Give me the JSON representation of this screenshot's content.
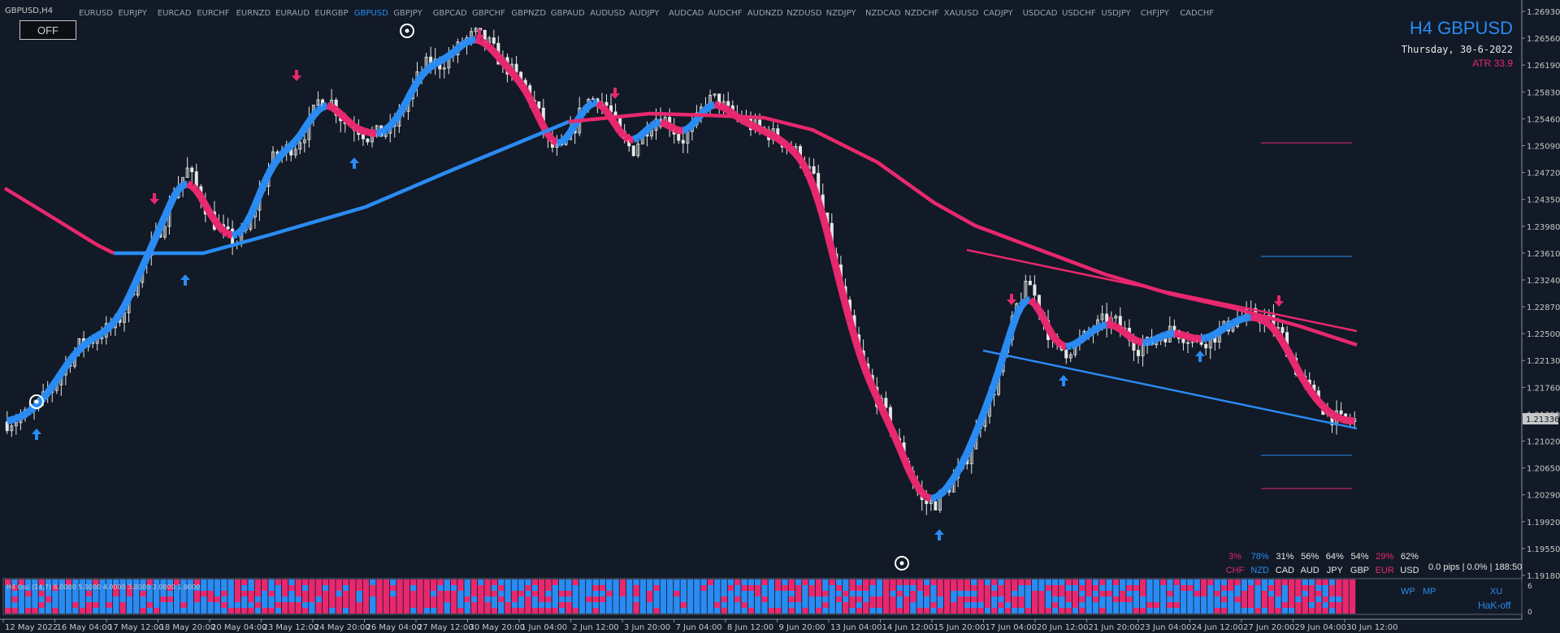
{
  "window": {
    "symbol_tf": "GBPUSD,H4"
  },
  "symbol_bar": [
    {
      "label": "EURUSD",
      "active": false
    },
    {
      "label": "EURJPY",
      "active": false
    },
    {
      "label": "EURCAD",
      "active": false
    },
    {
      "label": "EURCHF",
      "active": false
    },
    {
      "label": "EURNZD",
      "active": false
    },
    {
      "label": "EURAUD",
      "active": false
    },
    {
      "label": "EURGBP",
      "active": false
    },
    {
      "label": "GBPUSD",
      "active": true
    },
    {
      "label": "GBPJPY",
      "active": false
    },
    {
      "label": "GBPCAD",
      "active": false
    },
    {
      "label": "GBPCHF",
      "active": false
    },
    {
      "label": "GBPNZD",
      "active": false
    },
    {
      "label": "GBPAUD",
      "active": false
    },
    {
      "label": "AUDUSD",
      "active": false
    },
    {
      "label": "AUDJPY",
      "active": false
    },
    {
      "label": "AUDCAD",
      "active": false
    },
    {
      "label": "AUDCHF",
      "active": false
    },
    {
      "label": "AUDNZD",
      "active": false
    },
    {
      "label": "NZDUSD",
      "active": false
    },
    {
      "label": "NZDJPY",
      "active": false
    },
    {
      "label": "NZDCAD",
      "active": false
    },
    {
      "label": "NZDCHF",
      "active": false
    },
    {
      "label": "XAUUSD",
      "active": false
    },
    {
      "label": "CADJPY",
      "active": false
    },
    {
      "label": "USDCAD",
      "active": false
    },
    {
      "label": "USDCHF",
      "active": false
    },
    {
      "label": "USDJPY",
      "active": false
    },
    {
      "label": "CHFJPY",
      "active": false
    },
    {
      "label": "CADCHF",
      "active": false
    }
  ],
  "off_button": "OFF",
  "info": {
    "title": "H4 GBPUSD",
    "date": "Thursday, 30-6-2022",
    "atr": "ATR 33.9"
  },
  "price_axis": {
    "labels": [
      "1.26930",
      "1.26560",
      "1.26190",
      "1.25830",
      "1.25460",
      "1.25090",
      "1.24720",
      "1.24350",
      "1.23980",
      "1.23610",
      "1.23240",
      "1.22870",
      "1.22500",
      "1.22130",
      "1.21760",
      "1.21390",
      "1.21020",
      "1.20650",
      "1.20290",
      "1.19920",
      "1.19550",
      "1.19180"
    ],
    "current": "1.21336"
  },
  "time_axis": [
    "12 May 2022",
    "16 May 04:00",
    "17 May 12:00",
    "18 May 20:00",
    "20 May 04:00",
    "23 May 12:00",
    "24 May 20:00",
    "26 May 04:00",
    "27 May 12:00",
    "30 May 20:00",
    "1 Jun 04:00",
    "2 Jun 12:00",
    "3 Jun 20:00",
    "7 Jun 04:00",
    "8 Jun 12:00",
    "9 Jun 20:00",
    "13 Jun 04:00",
    "14 Jun 12:00",
    "15 Jun 20:00",
    "17 Jun 04:00",
    "20 Jun 12:00",
    "21 Jun 20:00",
    "23 Jun 04:00",
    "24 Jun 12:00",
    "27 Jun 20:00",
    "29 Jun 04:00",
    "30 Jun 12:00"
  ],
  "indicator_label": "H4 Osc (14,7) 6.0000 5.0000 4.0000 3.0000 2.0000 1.0000",
  "strength": {
    "pcts": [
      {
        "v": "3%",
        "c": "#e8286e"
      },
      {
        "v": "78%",
        "c": "#2a8bf2"
      },
      {
        "v": "31%",
        "c": "#e6e6e6"
      },
      {
        "v": "56%",
        "c": "#e6e6e6"
      },
      {
        "v": "64%",
        "c": "#e6e6e6"
      },
      {
        "v": "54%",
        "c": "#e6e6e6"
      },
      {
        "v": "29%",
        "c": "#e8286e"
      },
      {
        "v": "62%",
        "c": "#e6e6e6"
      }
    ],
    "ccys": [
      {
        "v": "CHF",
        "c": "#e8286e"
      },
      {
        "v": "NZD",
        "c": "#2a8bf2"
      },
      {
        "v": "CAD",
        "c": "#e6e6e6"
      },
      {
        "v": "AUD",
        "c": "#e6e6e6"
      },
      {
        "v": "JPY",
        "c": "#e6e6e6"
      },
      {
        "v": "GBP",
        "c": "#e6e6e6"
      },
      {
        "v": "EUR",
        "c": "#e8286e"
      },
      {
        "v": "USD",
        "c": "#e6e6e6"
      }
    ]
  },
  "pips_info": "0.0 pips | 0.0% | 188:50",
  "panel_buttons": {
    "wp": "WP",
    "mp": "MP",
    "xu": "XU",
    "hak": "HaK-off",
    "scale6": "6",
    "scale0": "0"
  },
  "colors": {
    "bg": "#111a26",
    "bull": "#2a8bf2",
    "bear": "#e8286e",
    "candle": "#e6e6e6",
    "text": "#c8c8c8"
  },
  "chart_data": {
    "type": "candlestick",
    "ylim": [
      1.1918,
      1.2693
    ],
    "close_path": [
      1.2131,
      1.2135,
      1.2145,
      1.2162,
      1.2182,
      1.2212,
      1.2235,
      1.2242,
      1.2255,
      1.2262,
      1.2292,
      1.2338,
      1.2368,
      1.2405,
      1.245,
      1.2475,
      1.2442,
      1.2408,
      1.2388,
      1.2376,
      1.2394,
      1.2445,
      1.2488,
      1.2501,
      1.2511,
      1.2533,
      1.2575,
      1.2568,
      1.2541,
      1.2535,
      1.2521,
      1.2525,
      1.253,
      1.256,
      1.2598,
      1.2622,
      1.262,
      1.2632,
      1.2652,
      1.266,
      1.2648,
      1.2625,
      1.2608,
      1.259,
      1.256,
      1.251,
      1.2498,
      1.2528,
      1.2568,
      1.2575,
      1.256,
      1.2518,
      1.2502,
      1.253,
      1.2548,
      1.2542,
      1.2515,
      1.253,
      1.2568,
      1.2572,
      1.2553,
      1.2545,
      1.2534,
      1.2528,
      1.252,
      1.2508,
      1.2492,
      1.2465,
      1.2402,
      1.2335,
      1.2268,
      1.2212,
      1.2172,
      1.2142,
      1.2102,
      1.2065,
      1.2022,
      1.2018,
      1.2038,
      1.2058,
      1.2092,
      1.2138,
      1.2175,
      1.2228,
      1.2295,
      1.232,
      1.2278,
      1.2234,
      1.2228,
      1.2238,
      1.2253,
      1.2267,
      1.2268,
      1.2253,
      1.2233,
      1.2238,
      1.225,
      1.2257,
      1.2248,
      1.224,
      1.2246,
      1.2256,
      1.227,
      1.2275,
      1.2276,
      1.2267,
      1.2247,
      1.2208,
      1.2178,
      1.2158,
      1.214,
      1.213,
      1.2133
    ]
  }
}
